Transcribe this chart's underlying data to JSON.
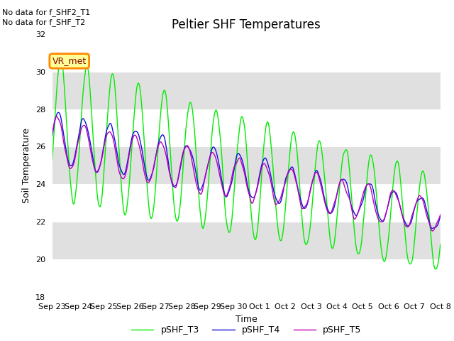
{
  "title": "Peltier SHF Temperatures",
  "xlabel": "Time",
  "ylabel": "Soil Temperature",
  "ylim": [
    18,
    32
  ],
  "yticks": [
    18,
    20,
    22,
    24,
    26,
    28,
    30,
    32
  ],
  "x_labels": [
    "Sep 23",
    "Sep 24",
    "Sep 25",
    "Sep 26",
    "Sep 27",
    "Sep 28",
    "Sep 29",
    "Sep 30",
    "Oct 1",
    "Oct 2",
    "Oct 3",
    "Oct 4",
    "Oct 5",
    "Oct 6",
    "Oct 7",
    "Oct 8"
  ],
  "no_data_texts": [
    "No data for f_SHF2_T1",
    "No data for f_SHF_T2"
  ],
  "vr_met_label": "VR_met",
  "band_color": "#e0e0e0",
  "line_colors": {
    "pSHF_T3": "#00EE00",
    "pSHF_T4": "#1111DD",
    "pSHF_T5": "#BB00BB"
  },
  "legend_entries": [
    "pSHF_T3",
    "pSHF_T4",
    "pSHF_T5"
  ],
  "title_fontsize": 12,
  "axis_label_fontsize": 9,
  "tick_fontsize": 8
}
